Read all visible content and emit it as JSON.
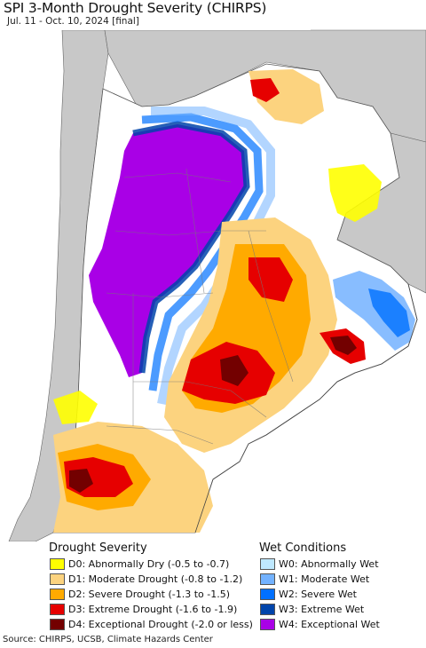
{
  "title": "SPI 3-Month Drought Severity (CHIRPS)",
  "subtitle": "Jul. 11 - Oct. 10, 2024 [final]",
  "legend": {
    "drought_heading": "Drought Severity",
    "wet_heading": "Wet Conditions",
    "drought_items": [
      {
        "label": "D0: Abnormally Dry (-0.5 to -0.7)",
        "color": "#ffff00"
      },
      {
        "label": "D1: Moderate Drought (-0.8 to -1.2)",
        "color": "#fcd37f"
      },
      {
        "label": "D2: Severe Drought (-1.3 to -1.5)",
        "color": "#ffaa00"
      },
      {
        "label": "D3: Extreme Drought (-1.6 to -1.9)",
        "color": "#e60000"
      },
      {
        "label": "D4: Exceptional Drought (-2.0 or less)",
        "color": "#730000"
      }
    ],
    "wet_items": [
      {
        "label": "W0: Abnormally Wet",
        "color": "#bee8ff"
      },
      {
        "label": "W1: Moderate Wet",
        "color": "#73b2ff"
      },
      {
        "label": "W2: Severe Wet",
        "color": "#0070ff"
      },
      {
        "label": "W3: Extreme Wet",
        "color": "#0044aa"
      },
      {
        "label": "W4: Exceptional Wet",
        "color": "#a900e6"
      }
    ]
  },
  "source": "Source: CHIRPS, UCSB, Climate Hazards Center",
  "colors": {
    "ocean": "#ffffff",
    "land_no_data": "#c8c8c8",
    "normal": "#ffffff",
    "border": "#666666"
  }
}
